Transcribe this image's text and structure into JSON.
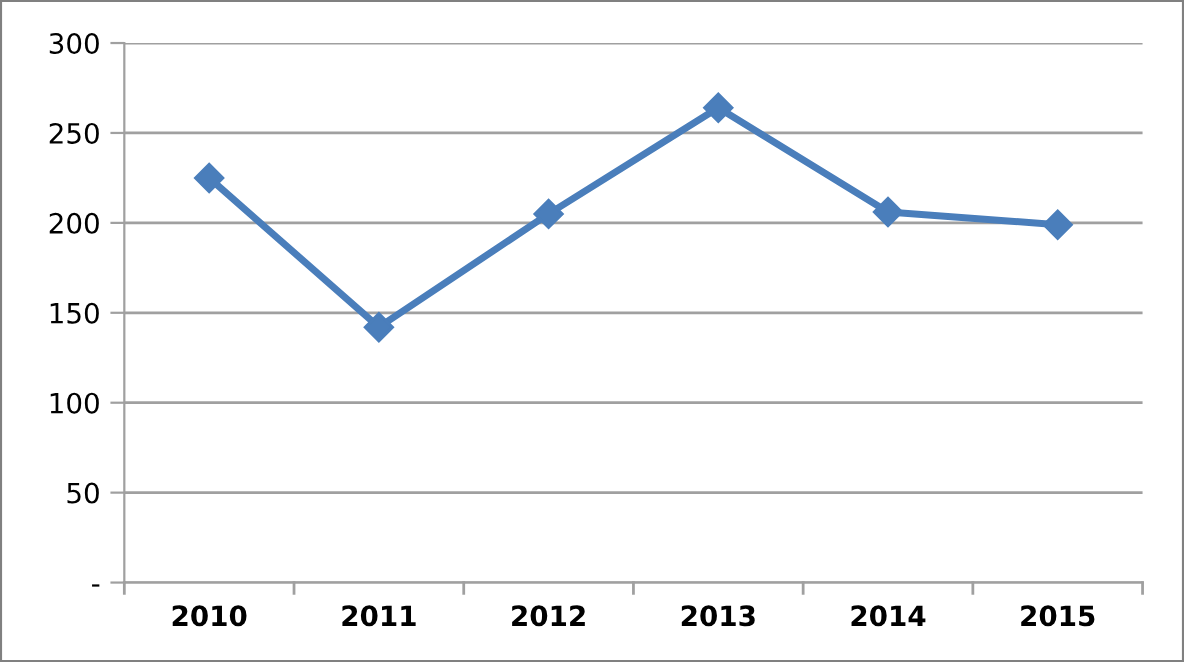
{
  "chart_data": {
    "type": "line",
    "categories": [
      "2010",
      "2011",
      "2012",
      "2013",
      "2014",
      "2015"
    ],
    "series": [
      {
        "color": "#4a7ebb",
        "values": [
          225,
          142,
          205,
          264,
          206,
          199
        ]
      }
    ],
    "ylim": [
      0,
      300
    ],
    "yticks": [
      {
        "value": 0,
        "label": "-"
      },
      50,
      100,
      150,
      200,
      250,
      300
    ],
    "grid": "y",
    "marker": "diamond",
    "line_style": "solid",
    "legend": false
  }
}
